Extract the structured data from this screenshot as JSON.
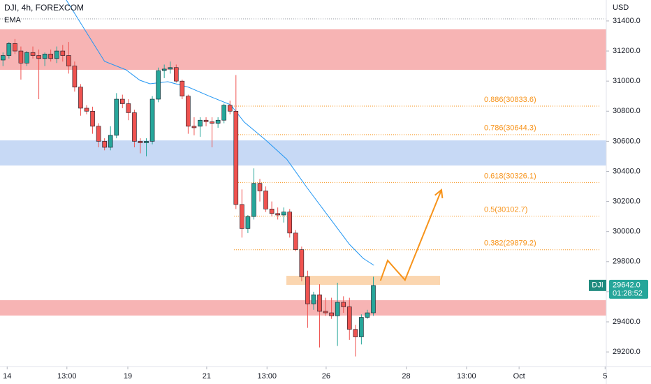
{
  "chart_data": {
    "type": "candlestick",
    "title": "DJI, 4h, FOREXCOM",
    "currency": "USD",
    "up_color": "#26a69a",
    "down_color": "#ef5350",
    "ylim": [
      29103,
      31539
    ],
    "yticks": [
      {
        "value": 29200,
        "label": "29200.0"
      },
      {
        "value": 29400,
        "label": "29400.0"
      },
      {
        "value": 29600,
        "label": "29600.0"
      },
      {
        "value": 29800,
        "label": "29800.0"
      },
      {
        "value": 30000,
        "label": "30000.0"
      },
      {
        "value": 30200,
        "label": "30200.0"
      },
      {
        "value": 30400,
        "label": "30400.0"
      },
      {
        "value": 30600,
        "label": "30600.0"
      },
      {
        "value": 30800,
        "label": "30800.0"
      },
      {
        "value": 31000,
        "label": "31000.0"
      },
      {
        "value": 31200,
        "label": "31200.0"
      },
      {
        "value": 31400,
        "label": "31400.0"
      }
    ],
    "xlim": [
      -0.5,
      101
    ],
    "xticks": [
      {
        "value": 0.7,
        "label": "14"
      },
      {
        "value": 10.7,
        "label": "13:00"
      },
      {
        "value": 20.9,
        "label": "19"
      },
      {
        "value": 34.1,
        "label": "21"
      },
      {
        "value": 44.2,
        "label": "13:00"
      },
      {
        "value": 54.1,
        "label": "26"
      },
      {
        "value": 67.5,
        "label": "28"
      },
      {
        "value": 77.6,
        "label": "13:00"
      },
      {
        "value": 86.4,
        "label": "Oct"
      },
      {
        "value": 100.8,
        "label": "5"
      }
    ],
    "series": [
      {
        "name": "DJI",
        "open": [
          31140,
          31170,
          31250,
          31200,
          31120,
          31190,
          31170,
          31150,
          31180,
          31150,
          31200,
          31170,
          31100,
          30960,
          30820,
          30800,
          30700,
          30600,
          30560,
          30640,
          30880,
          30850,
          30790,
          30600,
          30590,
          30600,
          30880,
          31070,
          31080,
          31090,
          31000,
          30900,
          30700,
          30700,
          30740,
          30730,
          30720,
          30740,
          30840,
          30800,
          30180,
          30020,
          30100,
          30320,
          30270,
          30150,
          30120,
          30110,
          30130,
          29990,
          29880,
          29700,
          29520,
          29580,
          29470,
          29460,
          29440,
          29530,
          29500,
          29350,
          29300,
          29430,
          29460
        ],
        "high": [
          31190,
          31260,
          31280,
          31230,
          31200,
          31230,
          31210,
          31190,
          31210,
          31230,
          31240,
          31260,
          31130,
          30980,
          30840,
          30830,
          30720,
          30620,
          30700,
          30920,
          30910,
          30880,
          30810,
          30620,
          30620,
          30900,
          31090,
          31110,
          31130,
          31110,
          31010,
          30910,
          30760,
          30760,
          30760,
          30760,
          30760,
          30850,
          30870,
          31040,
          30280,
          30110,
          30420,
          30350,
          30300,
          30200,
          30160,
          30160,
          30150,
          30010,
          29900,
          29740,
          29600,
          29650,
          29560,
          29560,
          29660,
          29570,
          29560,
          29380,
          29450,
          29480,
          29700
        ],
        "low": [
          31100,
          31150,
          31180,
          31010,
          31100,
          31150,
          30880,
          31100,
          31130,
          31120,
          31130,
          31050,
          30930,
          30770,
          30780,
          30650,
          30560,
          30540,
          30540,
          30620,
          30820,
          30740,
          30560,
          30520,
          30500,
          30580,
          30860,
          31020,
          31050,
          30990,
          30880,
          30650,
          30640,
          30630,
          30700,
          30560,
          30690,
          30720,
          30780,
          30150,
          29960,
          29990,
          30080,
          30200,
          30130,
          30100,
          30080,
          30060,
          29960,
          29870,
          29670,
          29360,
          29480,
          29230,
          29440,
          29420,
          29240,
          29460,
          29280,
          29170,
          29250,
          29420,
          29440
        ],
        "close": [
          31170,
          31250,
          31200,
          31120,
          31190,
          31170,
          31150,
          31180,
          31150,
          31200,
          31170,
          31100,
          30960,
          30820,
          30800,
          30700,
          30600,
          30560,
          30640,
          30880,
          30850,
          30790,
          30600,
          30590,
          30600,
          30880,
          31070,
          31080,
          31090,
          31000,
          30900,
          30700,
          30690,
          30740,
          30730,
          30720,
          30740,
          30840,
          30800,
          30180,
          30020,
          30100,
          30320,
          30270,
          30150,
          30120,
          30110,
          30130,
          29990,
          29880,
          29700,
          29520,
          29580,
          29470,
          29460,
          29440,
          29530,
          29500,
          29350,
          29300,
          29430,
          29460,
          29642
        ]
      }
    ],
    "indicator": {
      "name": "EMA",
      "color": "#2196f3",
      "x": [
        10.6,
        13.5,
        17.0,
        20.6,
        22.9,
        24.6,
        27.6,
        31.1,
        34.6,
        38.1,
        40.4,
        43.9,
        47.5,
        51.0,
        54.5,
        58.0,
        60.3,
        62.1
      ],
      "values": [
        31539,
        31354,
        31131,
        31075,
        31006,
        30982,
        30996,
        30959,
        30899,
        30843,
        30727,
        30611,
        30481,
        30286,
        30101,
        29915,
        29822,
        29776
      ]
    },
    "fib_color": "#f7931a",
    "fib_levels": [
      {
        "value": 30833.6,
        "label": "0.886(30833.6)"
      },
      {
        "value": 30644.3,
        "label": "0.786(30644.3)"
      },
      {
        "value": 30326.1,
        "label": "0.618(30326.1)"
      },
      {
        "value": 30102.7,
        "label": "0.5(30102.7)"
      },
      {
        "value": 29879.2,
        "label": "0.382(29879.2)"
      }
    ],
    "zones": [
      {
        "color": "#f7b4b4",
        "range": [
          31075,
          31344
        ]
      },
      {
        "color": "#c7d9f5",
        "range": [
          30439,
          30606
        ]
      },
      {
        "color": "#f7b4b4",
        "range": [
          29442,
          29544
        ]
      }
    ],
    "target_box": {
      "color": "#fbd6b0",
      "range": [
        29646,
        29706
      ]
    },
    "projection": {
      "color": "#f7931a",
      "x": [
        63.2,
        64.4,
        67.3,
        73.4
      ],
      "values": [
        29674,
        29808,
        29678,
        30277
      ]
    },
    "last_price": {
      "value": 29642,
      "label": "29642.0",
      "countdown": "01:28:52"
    }
  }
}
